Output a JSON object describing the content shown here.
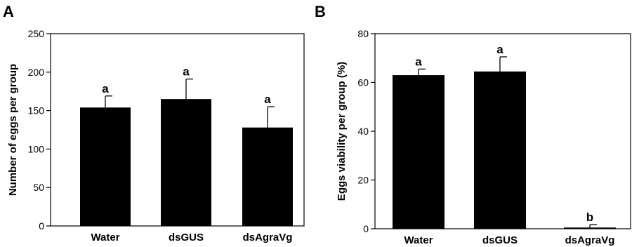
{
  "chart_data": [
    {
      "panel": "A",
      "type": "bar",
      "title": "",
      "xlabel": "",
      "ylabel": "Number of eggs per group",
      "ylim": [
        0,
        250
      ],
      "yticks": [
        0,
        50,
        100,
        150,
        200,
        250
      ],
      "categories": [
        "Water",
        "dsGUS",
        "dsAgraVg"
      ],
      "values": [
        154,
        165,
        128
      ],
      "error_plus": [
        15,
        26,
        27
      ],
      "significance": [
        "a",
        "a",
        "a"
      ],
      "bar_color": "#000000",
      "grid": false,
      "legend": "none"
    },
    {
      "panel": "B",
      "type": "bar",
      "title": "",
      "xlabel": "",
      "ylabel": "Eggs viability per group (%)",
      "ylim": [
        0,
        80
      ],
      "yticks": [
        0,
        20,
        40,
        60,
        80
      ],
      "categories": [
        "Water",
        "dsGUS",
        "dsAgraVg"
      ],
      "values": [
        63,
        64.5,
        0.5
      ],
      "error_plus": [
        2.5,
        6,
        1.2
      ],
      "significance": [
        "a",
        "a",
        "b"
      ],
      "bar_color": "#000000",
      "grid": false,
      "legend": "none"
    }
  ]
}
